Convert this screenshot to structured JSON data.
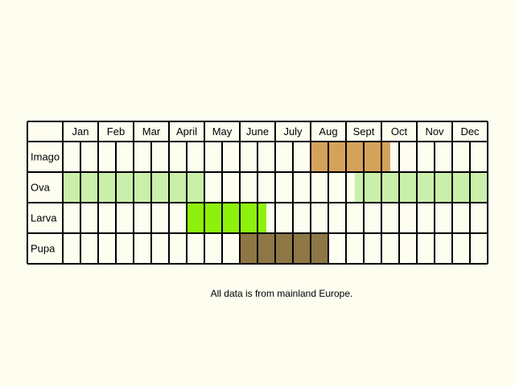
{
  "chart_data": {
    "type": "table",
    "months": [
      "Jan",
      "Feb",
      "Mar",
      "April",
      "May",
      "June",
      "July",
      "Aug",
      "Sept",
      "Oct",
      "Nov",
      "Dec"
    ],
    "stages": [
      {
        "label": "Imago",
        "color": "#d5a259",
        "start_half": 14,
        "end_half": 18.5
      },
      {
        "label": "Ova",
        "color": "#c9efab",
        "segments": [
          [
            0,
            8
          ],
          [
            16.5,
            24
          ]
        ]
      },
      {
        "label": "Larva",
        "color": "#8ef10d",
        "start_half": 7,
        "end_half": 11.5
      },
      {
        "label": "Pupa",
        "color": "#8e7645",
        "start_half": 10,
        "end_half": 15
      }
    ]
  },
  "footnote": "All data is from mainland Europe."
}
